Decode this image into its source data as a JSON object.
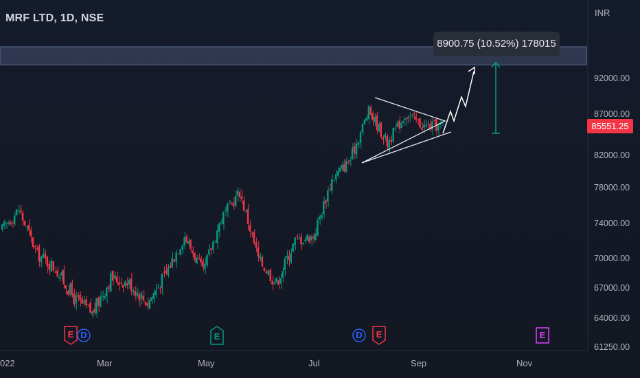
{
  "header": {
    "title": "MRF LTD, 1D, NSE",
    "currency": "INR"
  },
  "tooltip": {
    "text": "8900.75 (10.52%) 178015"
  },
  "last_price": {
    "label": "85551.25",
    "value": 85551.25
  },
  "x_axis_labels": [
    "022",
    "Mar",
    "May",
    "Jul",
    "Sep",
    "Nov"
  ],
  "y_axis_labels": [
    "92000.00",
    "87000.00",
    "82000.00",
    "78000.00",
    "74000.00",
    "70000.00",
    "67000.00",
    "64000.00",
    "61250.00"
  ],
  "events": [
    {
      "letter": "E",
      "kind": "earnings",
      "color": "#f23645"
    },
    {
      "letter": "D",
      "kind": "dividend",
      "color": "#2962ff"
    },
    {
      "letter": "E",
      "kind": "earnings",
      "color": "#089981"
    },
    {
      "letter": "D",
      "kind": "dividend",
      "color": "#2962ff"
    },
    {
      "letter": "E",
      "kind": "earnings",
      "color": "#f23645"
    },
    {
      "letter": "E",
      "kind": "earnings",
      "color": "#e040fb"
    }
  ],
  "colors": {
    "up": "#089981",
    "down": "#f23645",
    "background": "#131722",
    "text": "#b2b5be"
  },
  "chart_data": {
    "type": "candlestick",
    "title": "MRF LTD, 1D, NSE",
    "currency": "INR",
    "ylim": [
      61250,
      96500
    ],
    "grid": false,
    "approx_close_path": [
      {
        "date": "Feb",
        "close": 73000
      },
      {
        "date": "Feb",
        "close": 75500
      },
      {
        "date": "Feb",
        "close": 70500
      },
      {
        "date": "Feb",
        "close": 69000
      },
      {
        "date": "Feb",
        "close": 66000
      },
      {
        "date": "Mar",
        "close": 64500
      },
      {
        "date": "Mar",
        "close": 68000
      },
      {
        "date": "Mar",
        "close": 67500
      },
      {
        "date": "Apr",
        "close": 65500
      },
      {
        "date": "Apr",
        "close": 68500
      },
      {
        "date": "May",
        "close": 72500
      },
      {
        "date": "May",
        "close": 68500
      },
      {
        "date": "May",
        "close": 74500
      },
      {
        "date": "Jun",
        "close": 77500
      },
      {
        "date": "Jun",
        "close": 70000
      },
      {
        "date": "Jun",
        "close": 67500
      },
      {
        "date": "Jun",
        "close": 72000
      },
      {
        "date": "Jul",
        "close": 72500
      },
      {
        "date": "Jul",
        "close": 79000
      },
      {
        "date": "Jul",
        "close": 81500
      },
      {
        "date": "Aug",
        "close": 87500
      },
      {
        "date": "Aug",
        "close": 83500
      },
      {
        "date": "Aug",
        "close": 87000
      },
      {
        "date": "Sep",
        "close": 85500
      },
      {
        "date": "Sep",
        "close": 85551.25
      }
    ],
    "projection": {
      "change": 8900.75,
      "change_pct": 10.52,
      "bars": 178015,
      "target_approx": 94450
    },
    "resistance_band": [
      93900,
      96500
    ]
  }
}
